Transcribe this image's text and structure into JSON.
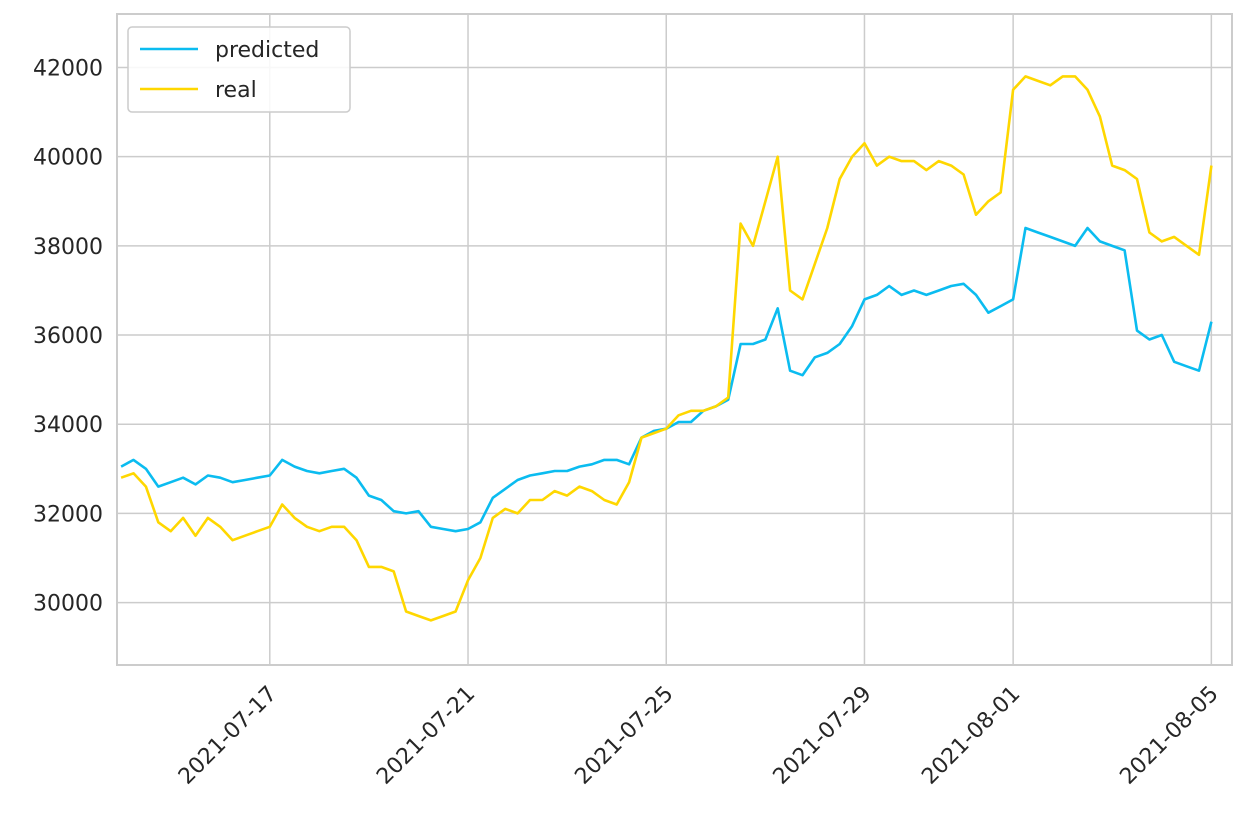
{
  "chart_data": {
    "type": "line",
    "title": "",
    "xlabel": "",
    "ylabel": "",
    "xlim": [
      "2021-07-13T22:00",
      "2021-08-05T10:00"
    ],
    "ylim": [
      28600,
      43200
    ],
    "grid": true,
    "legend_position": "top-left",
    "x_ticks": [
      "2021-07-17",
      "2021-07-21",
      "2021-07-25",
      "2021-07-29",
      "2021-08-01",
      "2021-08-05"
    ],
    "y_ticks": [
      "30000",
      "32000",
      "34000",
      "36000",
      "38000",
      "40000",
      "42000"
    ],
    "x": [
      "2021-07-14T00:00",
      "2021-07-14T06:00",
      "2021-07-14T12:00",
      "2021-07-14T18:00",
      "2021-07-15T00:00",
      "2021-07-15T06:00",
      "2021-07-15T12:00",
      "2021-07-15T18:00",
      "2021-07-16T00:00",
      "2021-07-16T06:00",
      "2021-07-16T12:00",
      "2021-07-16T18:00",
      "2021-07-17T00:00",
      "2021-07-17T06:00",
      "2021-07-17T12:00",
      "2021-07-17T18:00",
      "2021-07-18T00:00",
      "2021-07-18T06:00",
      "2021-07-18T12:00",
      "2021-07-18T18:00",
      "2021-07-19T00:00",
      "2021-07-19T06:00",
      "2021-07-19T12:00",
      "2021-07-19T18:00",
      "2021-07-20T00:00",
      "2021-07-20T06:00",
      "2021-07-20T12:00",
      "2021-07-20T18:00",
      "2021-07-21T00:00",
      "2021-07-21T06:00",
      "2021-07-21T12:00",
      "2021-07-21T18:00",
      "2021-07-22T00:00",
      "2021-07-22T06:00",
      "2021-07-22T12:00",
      "2021-07-22T18:00",
      "2021-07-23T00:00",
      "2021-07-23T06:00",
      "2021-07-23T12:00",
      "2021-07-23T18:00",
      "2021-07-24T00:00",
      "2021-07-24T06:00",
      "2021-07-24T12:00",
      "2021-07-24T18:00",
      "2021-07-25T00:00",
      "2021-07-25T06:00",
      "2021-07-25T12:00",
      "2021-07-25T18:00",
      "2021-07-26T00:00",
      "2021-07-26T06:00",
      "2021-07-26T12:00",
      "2021-07-26T18:00",
      "2021-07-27T00:00",
      "2021-07-27T06:00",
      "2021-07-27T12:00",
      "2021-07-27T18:00",
      "2021-07-28T00:00",
      "2021-07-28T06:00",
      "2021-07-28T12:00",
      "2021-07-28T18:00",
      "2021-07-29T00:00",
      "2021-07-29T06:00",
      "2021-07-29T12:00",
      "2021-07-29T18:00",
      "2021-07-30T00:00",
      "2021-07-30T06:00",
      "2021-07-30T12:00",
      "2021-07-30T18:00",
      "2021-07-31T00:00",
      "2021-07-31T06:00",
      "2021-07-31T12:00",
      "2021-07-31T18:00",
      "2021-08-01T00:00",
      "2021-08-01T06:00",
      "2021-08-01T12:00",
      "2021-08-01T18:00",
      "2021-08-02T00:00",
      "2021-08-02T06:00",
      "2021-08-02T12:00",
      "2021-08-02T18:00",
      "2021-08-03T00:00",
      "2021-08-03T06:00",
      "2021-08-03T12:00",
      "2021-08-03T18:00",
      "2021-08-04T00:00",
      "2021-08-04T06:00",
      "2021-08-04T12:00",
      "2021-08-04T18:00",
      "2021-08-05T00:00"
    ],
    "series": [
      {
        "name": "predicted",
        "color": "#0bbcf0",
        "values": [
          33050,
          33200,
          33000,
          32600,
          32700,
          32800,
          32650,
          32850,
          32800,
          32700,
          32750,
          32800,
          32850,
          33200,
          33050,
          32950,
          32900,
          32950,
          33000,
          32800,
          32400,
          32300,
          32050,
          32000,
          32050,
          31700,
          31650,
          31600,
          31650,
          31800,
          32350,
          32550,
          32750,
          32850,
          32900,
          32950,
          32950,
          33050,
          33100,
          33200,
          33200,
          33100,
          33700,
          33850,
          33900,
          34050,
          34050,
          34300,
          34400,
          34550,
          35800,
          35800,
          35900,
          36600,
          35200,
          35100,
          35500,
          35600,
          35800,
          36200,
          36800,
          36900,
          37100,
          36900,
          37000,
          36900,
          37000,
          37100,
          37150,
          36900,
          36500,
          36650,
          36800,
          38400,
          38300,
          38200,
          38100,
          38000,
          38400,
          38100,
          38000,
          37900,
          36100,
          35900,
          36000,
          35400,
          35300,
          35200,
          36300
        ]
      },
      {
        "name": "real",
        "color": "#ffd700",
        "values": [
          32800,
          32900,
          32600,
          31800,
          31600,
          31900,
          31500,
          31900,
          31700,
          31400,
          31500,
          31600,
          31700,
          32200,
          31900,
          31700,
          31600,
          31700,
          31700,
          31400,
          30800,
          30800,
          30700,
          29800,
          29700,
          29600,
          29700,
          29800,
          30500,
          31000,
          31900,
          32100,
          32000,
          32300,
          32300,
          32500,
          32400,
          32600,
          32500,
          32300,
          32200,
          32700,
          33700,
          33800,
          33900,
          34200,
          34300,
          34300,
          34400,
          34600,
          38500,
          38000,
          39000,
          40000,
          37000,
          36800,
          37600,
          38400,
          39500,
          40000,
          40300,
          39800,
          40000,
          39900,
          39900,
          39700,
          39900,
          39800,
          39600,
          38700,
          39000,
          39200,
          41500,
          41800,
          41700,
          41600,
          41800,
          41800,
          41500,
          40900,
          39800,
          39700,
          39500,
          38300,
          38100,
          38200,
          38000,
          37800,
          39800
        ]
      }
    ]
  }
}
